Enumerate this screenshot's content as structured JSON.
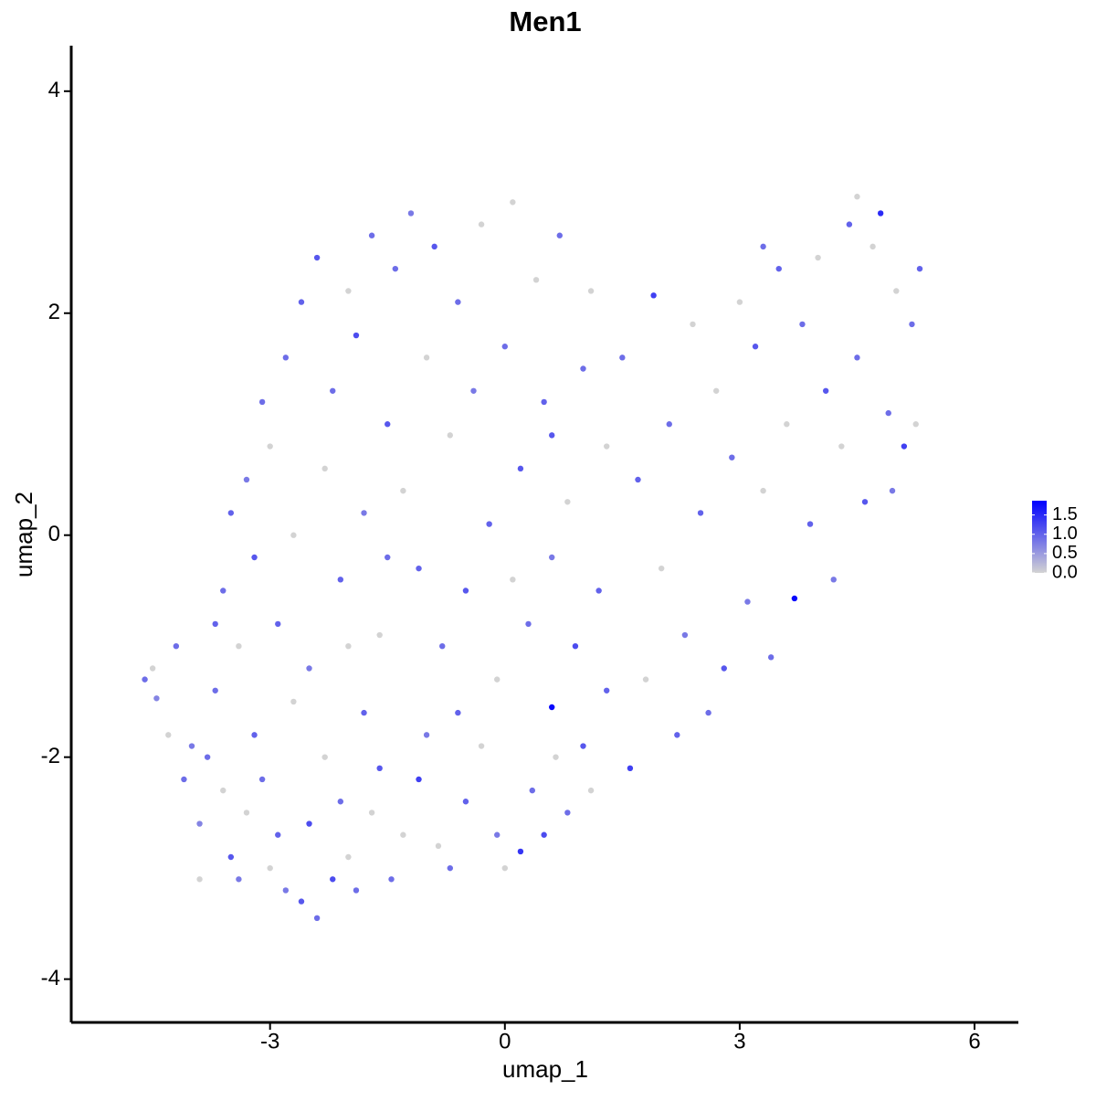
{
  "chart_data": {
    "type": "scatter",
    "title": "Men1",
    "x_label": "umap_1",
    "y_label": "umap_2",
    "xlim": [
      -5.54,
      6.56
    ],
    "ylim": [
      -4.39,
      4.41
    ],
    "xticks": [
      -3,
      0,
      3,
      6
    ],
    "yticks": [
      -4,
      -2,
      0,
      2,
      4
    ],
    "color_low": "#d3d3d3",
    "color_high": "#0000ff",
    "clim": [
      0,
      1.87
    ],
    "legend_ticks": [
      {
        "value": 0,
        "label": "0.0"
      },
      {
        "value": 0.5,
        "label": "0.5"
      },
      {
        "value": 1,
        "label": "1.0"
      },
      {
        "value": 1.5,
        "label": "1.5"
      }
    ],
    "x": [
      -4.6,
      -4.5,
      -4.45,
      -4.3,
      -4.1,
      -4.0,
      -3.9,
      -3.8,
      -3.7,
      -3.6,
      -3.5,
      -3.4,
      -3.3,
      -3.2,
      -3.1,
      -3.0,
      -2.9,
      -2.8,
      -2.7,
      -2.6,
      -2.5,
      -2.4,
      -2.3,
      -2.2,
      -2.1,
      -2.0,
      -1.9,
      -1.8,
      -1.7,
      -1.6,
      -1.45,
      -1.3,
      -1.1,
      -1.0,
      -0.85,
      -0.7,
      -0.5,
      -0.3,
      -0.1,
      0.0,
      0.2,
      0.35,
      0.5,
      0.65,
      0.8,
      1.0,
      1.1,
      1.3,
      1.6,
      0.6,
      -3.6,
      -3.5,
      -3.4,
      -3.3,
      -3.2,
      -3.1,
      -3.0,
      -2.9,
      -2.8,
      -2.7,
      -2.6,
      -2.5,
      -2.4,
      -2.3,
      -2.2,
      -2.1,
      -2.0,
      -1.9,
      -1.8,
      -1.7,
      -1.6,
      -1.5,
      -1.4,
      -1.3,
      -1.2,
      -1.1,
      -1.0,
      -0.9,
      -0.8,
      -0.7,
      -0.6,
      -0.5,
      -0.4,
      -0.3,
      -0.2,
      -0.1,
      0.0,
      0.1,
      0.2,
      0.3,
      0.4,
      0.5,
      0.6,
      0.7,
      0.8,
      0.9,
      1.0,
      1.1,
      1.2,
      1.3,
      1.5,
      1.7,
      1.9,
      2.0,
      2.1,
      2.3,
      2.4,
      2.5,
      2.6,
      2.7,
      2.8,
      2.9,
      3.0,
      3.1,
      3.2,
      3.3,
      3.4,
      3.5,
      3.6,
      3.7,
      3.8,
      3.9,
      4.0,
      4.1,
      4.2,
      4.3,
      4.4,
      4.5,
      4.6,
      4.7,
      4.8,
      4.9,
      5.0,
      5.1,
      5.2,
      5.3,
      5.25,
      4.95,
      4.5,
      3.3,
      -4.2,
      -3.9,
      -3.7,
      -2.0,
      -1.5,
      -0.6,
      0.1,
      0.6,
      1.8,
      2.2
    ],
    "y": [
      -1.3,
      -1.2,
      -1.47,
      -1.8,
      -2.2,
      -1.9,
      -2.6,
      -2.0,
      -1.4,
      -2.3,
      -2.9,
      -3.1,
      -2.5,
      -1.8,
      -2.2,
      -3.0,
      -2.7,
      -3.2,
      -1.5,
      -3.3,
      -2.6,
      -3.45,
      -2.0,
      -3.1,
      -2.4,
      -2.9,
      -3.2,
      -1.6,
      -2.5,
      -2.1,
      -3.1,
      -2.7,
      -2.2,
      -1.8,
      -2.8,
      -3.0,
      -2.4,
      -1.9,
      -2.7,
      -3.0,
      -2.85,
      -2.3,
      -2.7,
      -2.0,
      -2.5,
      -1.9,
      -2.3,
      -1.4,
      -2.1,
      -1.55,
      -0.5,
      0.2,
      -1.0,
      0.5,
      -0.2,
      1.2,
      0.8,
      -0.8,
      1.6,
      0.0,
      2.1,
      -1.2,
      2.5,
      0.6,
      1.3,
      -0.4,
      2.2,
      1.8,
      0.2,
      2.7,
      -0.9,
      1.0,
      2.4,
      0.4,
      2.9,
      -0.3,
      1.6,
      2.6,
      -1.0,
      0.9,
      2.1,
      -0.5,
      1.3,
      2.8,
      0.1,
      -1.3,
      1.7,
      3.0,
      0.6,
      -0.8,
      2.3,
      1.2,
      -0.2,
      2.7,
      0.3,
      -1.0,
      1.5,
      2.2,
      -0.5,
      0.8,
      1.6,
      0.5,
      2.16,
      -0.3,
      1.0,
      -0.9,
      1.9,
      0.2,
      -1.6,
      1.3,
      -1.2,
      0.7,
      2.1,
      -0.6,
      1.7,
      0.4,
      -1.1,
      2.4,
      1.0,
      -0.57,
      1.9,
      0.1,
      2.5,
      1.3,
      -0.4,
      0.8,
      2.8,
      1.6,
      0.3,
      2.6,
      2.9,
      1.1,
      2.2,
      0.8,
      1.9,
      2.4,
      1.0,
      0.4,
      3.05,
      2.6,
      -1.0,
      -3.1,
      -0.8,
      -1.0,
      -0.2,
      -1.6,
      -0.4,
      0.9,
      -1.3,
      -1.8
    ],
    "values": [
      0.9,
      0,
      0.7,
      0,
      0.9,
      0.8,
      0.7,
      0.9,
      0.9,
      0,
      1.1,
      0.8,
      0,
      1.0,
      0.9,
      0,
      1.0,
      0.8,
      0,
      1.1,
      1.2,
      0.9,
      0,
      1.2,
      0.9,
      0,
      0.9,
      1.0,
      0,
      1.1,
      0.9,
      0,
      1.3,
      0.8,
      0,
      0.9,
      1.0,
      0,
      0.8,
      0,
      1.4,
      0.9,
      1.2,
      0,
      0.9,
      1.1,
      0,
      1.0,
      1.3,
      1.8,
      0.9,
      1.0,
      0,
      0.8,
      1.1,
      0.9,
      0,
      1.0,
      0.9,
      0,
      1.0,
      0.8,
      1.1,
      0,
      0.9,
      1.0,
      0,
      1.2,
      0.8,
      0.9,
      0,
      1.1,
      0.9,
      0,
      0.8,
      1.0,
      0,
      1.1,
      0.9,
      0,
      0.9,
      1.1,
      0.8,
      0,
      1.0,
      0,
      0.9,
      0,
      1.1,
      0.9,
      0,
      1.0,
      0.8,
      0.9,
      0,
      1.2,
      0.9,
      0,
      1.0,
      0,
      0.9,
      1.0,
      1.3,
      0,
      0.9,
      0.8,
      0,
      1.0,
      0.9,
      0,
      1.1,
      0.9,
      0,
      0.8,
      1.1,
      0,
      0.9,
      1.0,
      0,
      1.8,
      0.9,
      1.0,
      0,
      1.1,
      0.8,
      0,
      1.0,
      0.9,
      1.1,
      0,
      1.5,
      0.9,
      0,
      1.3,
      0.9,
      1.0,
      0,
      0.8,
      0,
      0.9,
      0.9,
      0,
      1.0,
      0,
      0.9,
      1.0,
      0,
      1.1,
      0,
      1.0
    ]
  }
}
